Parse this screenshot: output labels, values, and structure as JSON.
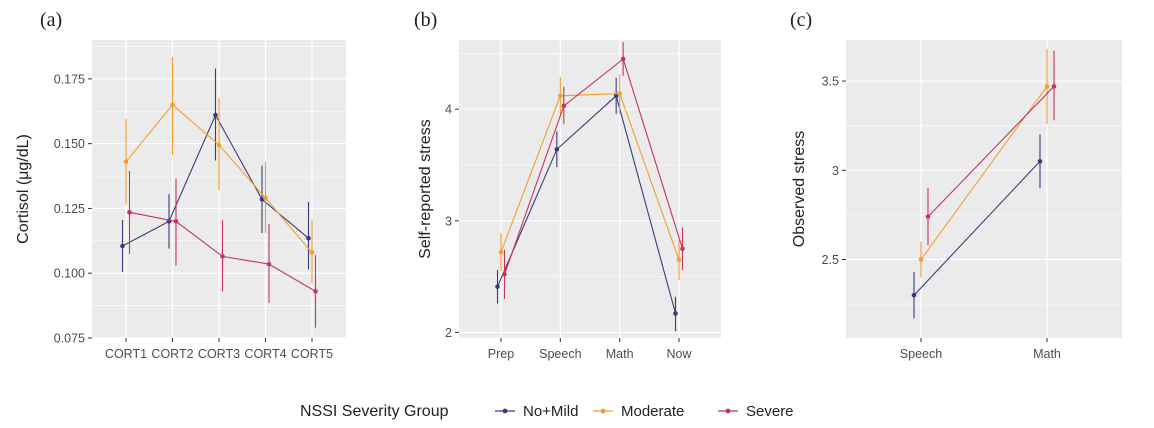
{
  "chart_data": [
    {
      "type": "line",
      "panel_label": "(a)",
      "categories": [
        "CORT1",
        "CORT2",
        "CORT3",
        "CORT4",
        "CORT5"
      ],
      "ylabel": "Cortisol (μg/dL)",
      "ylim": [
        0.075,
        0.19
      ],
      "yticks": [
        "0.075",
        "0.100",
        "0.125",
        "0.150",
        "0.175"
      ],
      "ytick_values": [
        0.075,
        0.1,
        0.125,
        0.15,
        0.175
      ],
      "grid": true,
      "series": [
        {
          "name": "No+Mild",
          "values": [
            0.1105,
            0.12,
            0.161,
            0.1285,
            0.1135
          ],
          "lower": [
            0.1005,
            0.1095,
            0.1435,
            0.1155,
            0.1015
          ],
          "upper": [
            0.1205,
            0.1305,
            0.179,
            0.1415,
            0.1275
          ]
        },
        {
          "name": "Moderate",
          "values": [
            0.143,
            0.165,
            0.1495,
            0.129,
            0.108
          ],
          "lower": [
            0.1265,
            0.1455,
            0.132,
            0.1155,
            0.096
          ],
          "upper": [
            0.1595,
            0.1835,
            0.1675,
            0.143,
            0.1205
          ]
        },
        {
          "name": "Severe",
          "values": [
            0.1235,
            0.12,
            0.1065,
            0.1035,
            0.093
          ],
          "lower": [
            0.1075,
            0.103,
            0.093,
            0.0885,
            0.079
          ],
          "upper": [
            0.1395,
            0.1365,
            0.1205,
            0.119,
            0.107
          ]
        }
      ]
    },
    {
      "type": "line",
      "panel_label": "(b)",
      "categories": [
        "Prep",
        "Speech",
        "Math",
        "Now"
      ],
      "ylabel": "Self-reported stress",
      "ylim": [
        1.95,
        4.62
      ],
      "yticks": [
        "2",
        "3",
        "4"
      ],
      "ytick_values": [
        2,
        3,
        4
      ],
      "grid": true,
      "series": [
        {
          "name": "No+Mild",
          "values": [
            2.41,
            3.64,
            4.12,
            2.17
          ],
          "lower": [
            2.26,
            3.48,
            3.96,
            2.01
          ],
          "upper": [
            2.56,
            3.8,
            4.28,
            2.32
          ]
        },
        {
          "name": "Moderate",
          "values": [
            2.72,
            4.12,
            4.14,
            2.65
          ],
          "lower": [
            2.55,
            3.95,
            3.96,
            2.47
          ],
          "upper": [
            2.89,
            4.29,
            4.31,
            2.83
          ]
        },
        {
          "name": "Severe",
          "values": [
            2.52,
            4.03,
            4.45,
            2.75
          ],
          "lower": [
            2.3,
            3.87,
            4.3,
            2.56
          ],
          "upper": [
            2.74,
            4.2,
            4.6,
            2.94
          ]
        }
      ]
    },
    {
      "type": "line",
      "panel_label": "(c)",
      "categories": [
        "Speech",
        "Math"
      ],
      "ylabel": "Observed stress",
      "ylim": [
        2.06,
        3.73
      ],
      "yticks": [
        "2.5",
        "3",
        "3.5"
      ],
      "ytick_values": [
        2.5,
        3.0,
        3.5
      ],
      "grid": true,
      "series": [
        {
          "name": "No+Mild",
          "values": [
            2.3,
            3.05
          ],
          "lower": [
            2.17,
            2.9
          ],
          "upper": [
            2.43,
            3.2
          ]
        },
        {
          "name": "Moderate",
          "values": [
            2.5,
            3.47
          ],
          "lower": [
            2.4,
            3.26
          ],
          "upper": [
            2.6,
            3.68
          ]
        },
        {
          "name": "Severe",
          "values": [
            2.74,
            3.47
          ],
          "lower": [
            2.58,
            3.28
          ],
          "upper": [
            2.9,
            3.67
          ]
        }
      ]
    }
  ],
  "legend": {
    "title": "NSSI Severity Group",
    "placement": "bottom",
    "items": [
      {
        "name": "No+Mild",
        "color": "#3b3b7a"
      },
      {
        "name": "Moderate",
        "color": "#f0a030"
      },
      {
        "name": "Severe",
        "color": "#c8345a"
      }
    ]
  },
  "style": {
    "panel_background": "#ebebeb",
    "grid_color": "#ffffff"
  }
}
